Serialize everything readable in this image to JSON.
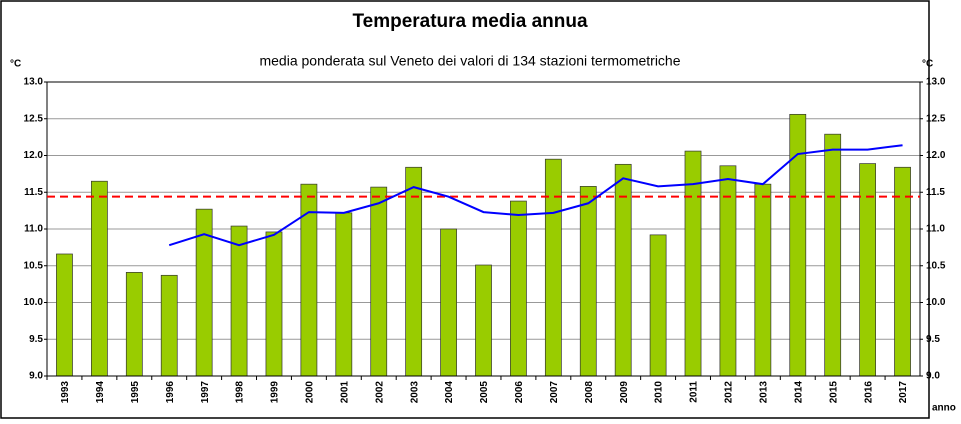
{
  "chart_data": {
    "type": "bar",
    "title": "Temperatura media annua",
    "subtitle": "media ponderata sul Veneto dei valori di 134 stazioni termometriche",
    "y_label": "°C",
    "y2_label": "°C",
    "x_label": "anno",
    "categories": [
      "1993",
      "1994",
      "1995",
      "1996",
      "1997",
      "1998",
      "1999",
      "2000",
      "2001",
      "2002",
      "2003",
      "2004",
      "2005",
      "2006",
      "2007",
      "2008",
      "2009",
      "2010",
      "2011",
      "2012",
      "2013",
      "2014",
      "2015",
      "2016",
      "2017"
    ],
    "values": [
      10.66,
      11.65,
      10.41,
      10.37,
      11.27,
      11.04,
      10.96,
      11.61,
      11.22,
      11.57,
      11.84,
      11.0,
      10.51,
      11.38,
      11.95,
      11.58,
      11.88,
      10.92,
      12.06,
      11.86,
      11.61,
      12.56,
      12.29,
      11.89,
      11.84
    ],
    "color": "#99cc00",
    "trend": {
      "color": "#0000ff",
      "values": [
        null,
        null,
        null,
        10.78,
        10.93,
        10.78,
        10.92,
        11.23,
        11.22,
        11.35,
        11.57,
        11.44,
        11.23,
        11.19,
        11.22,
        11.35,
        11.69,
        11.58,
        11.61,
        11.68,
        11.61,
        12.02,
        12.08,
        12.08,
        12.14
      ]
    },
    "mean_line": {
      "color": "#ff0000",
      "value": 11.44
    },
    "ylim": [
      9,
      13
    ],
    "yticks": [
      {
        "value": 9,
        "label": "9.0"
      },
      {
        "value": 9.5,
        "label": "9.5"
      },
      {
        "value": 10,
        "label": "10.0"
      },
      {
        "value": 10.5,
        "label": "10.5"
      },
      {
        "value": 11,
        "label": "11.0"
      },
      {
        "value": 11.5,
        "label": "11.5"
      },
      {
        "value": 12,
        "label": "12.0"
      },
      {
        "value": 12.5,
        "label": "12.5"
      },
      {
        "value": 13,
        "label": "13.0"
      }
    ],
    "grid": true
  }
}
